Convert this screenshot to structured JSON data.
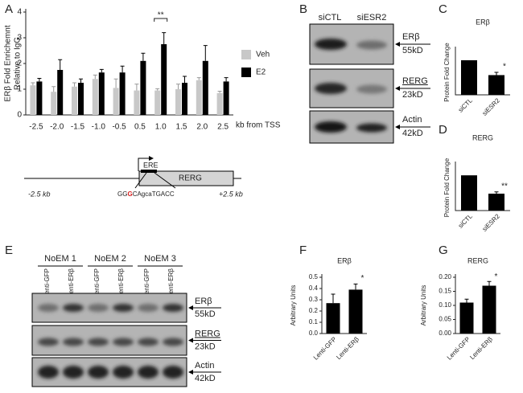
{
  "panels": [
    "A",
    "B",
    "C",
    "D",
    "E",
    "F",
    "G"
  ],
  "chart_data": [
    {
      "type": "bar",
      "ylabel": [
        "ERβ Fold Enrichemnt",
        "Relative to IgG"
      ],
      "xlabel": "kb from TSS",
      "categories": [
        "-2.5",
        "-2.0",
        "-1.5",
        "-1.0",
        "-0.5",
        "0.5",
        "1.0",
        "1.5",
        "2.0",
        "2.5"
      ],
      "series": [
        {
          "name": "Veh",
          "color": "#c8c8c8",
          "values": [
            1.15,
            0.9,
            1.1,
            1.4,
            1.05,
            0.95,
            0.95,
            1.0,
            1.35,
            0.85
          ],
          "errors": [
            0.1,
            0.2,
            0.15,
            0.15,
            0.35,
            0.25,
            0.07,
            0.2,
            0.1,
            0.07
          ]
        },
        {
          "name": "E2",
          "color": "#000000",
          "values": [
            1.3,
            1.75,
            1.25,
            1.65,
            1.65,
            2.1,
            2.75,
            1.25,
            2.1,
            1.3
          ],
          "errors": [
            0.12,
            0.4,
            0.15,
            0.12,
            0.25,
            0.3,
            0.45,
            0.25,
            0.6,
            0.15
          ]
        }
      ],
      "ylim": [
        0,
        4
      ],
      "yticks": [
        0,
        1,
        2,
        3,
        4
      ],
      "annotations": [
        "**"
      ]
    },
    {
      "type": "bar",
      "title": "ERβ",
      "ylabel": "Protein Fold Change",
      "categories": [
        "siCTL",
        "siESR2"
      ],
      "values": [
        1,
        0.57
      ],
      "errors": [
        0,
        0.08
      ],
      "color": "#000000",
      "ylim": [
        0,
        1.3
      ],
      "annotations": [
        "*"
      ]
    },
    {
      "type": "bar",
      "title": "RERG",
      "ylabel": "Protein Fold Change",
      "categories": [
        "siCTL",
        "siESR2"
      ],
      "values": [
        1,
        0.48
      ],
      "errors": [
        0,
        0.05
      ],
      "color": "#000000",
      "ylim": [
        0,
        1.3
      ],
      "annotations": [
        "**"
      ]
    },
    {
      "type": "bar",
      "title": "ERβ",
      "ylabel": "Arbitrary Units",
      "categories": [
        "Lenti-GFP",
        "Lenti-ERβ"
      ],
      "values": [
        0.27,
        0.39
      ],
      "errors": [
        0.08,
        0.05
      ],
      "color": "#000000",
      "ylim": [
        0,
        0.5
      ],
      "yticks": [
        {
          "value": 0,
          "label": "0.0"
        },
        0.1,
        0.2,
        0.3,
        0.4,
        0.5
      ],
      "annotations": [
        "*"
      ]
    },
    {
      "type": "bar",
      "title": "RERG",
      "ylabel": "Arbitrary Units",
      "categories": [
        "Lenti-GFP",
        "Lenti-ERβ"
      ],
      "values": [
        0.11,
        0.17
      ],
      "errors": [
        0.012,
        0.015
      ],
      "color": "#000000",
      "ylim": [
        0,
        0.2
      ],
      "yticks": [
        {
          "value": 0,
          "label": "0.00"
        },
        0.05,
        {
          "value": 0.1,
          "label": "0.10"
        },
        0.15,
        {
          "value": 0.2,
          "label": "0.20"
        }
      ],
      "annotations": [
        "*"
      ]
    }
  ],
  "gene_diagram": {
    "element": "ERE",
    "gene": "RERG",
    "start": "-2.5 kb",
    "end": "+2.5 kb",
    "sequence": [
      "GG",
      "G",
      "CAgcaTGACC"
    ]
  },
  "blot_b": {
    "columns": [
      "siCTL",
      "siESR2"
    ],
    "rows": [
      {
        "protein": "ERβ",
        "size": "55kD"
      },
      {
        "protein": "RERG",
        "size": "23kD"
      },
      {
        "protein": "Actin",
        "size": "42kD"
      }
    ]
  },
  "blot_e": {
    "groups": [
      "NoEM 1",
      "NoEM 2",
      "NoEM 3"
    ],
    "lanes": [
      "Lenti-GFP",
      "Lenti-ERβ"
    ],
    "rows": [
      {
        "protein": "ERβ",
        "size": "55kD"
      },
      {
        "protein": "RERG",
        "size": "23kD"
      },
      {
        "protein": "Actin",
        "size": "42kD"
      }
    ]
  }
}
